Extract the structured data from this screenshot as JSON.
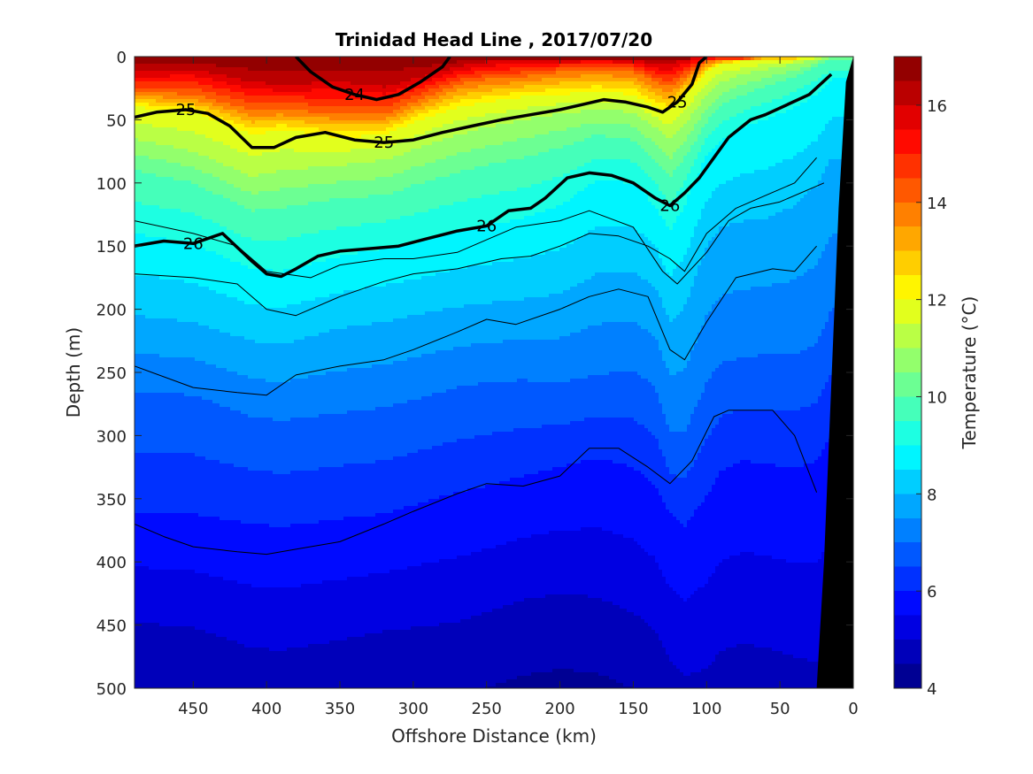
{
  "chart_data": {
    "type": "heatmap",
    "subtype": "filled-contour section with density contour overlay",
    "title": "Trinidad Head Line , 2017/07/20",
    "xlabel": "Offshore Distance (km)",
    "ylabel": "Depth (m)",
    "colorbar_label": "Temperature (°C)",
    "xlim": [
      490,
      0
    ],
    "x_reversed": true,
    "ylim": [
      0,
      500
    ],
    "y_reversed": true,
    "x_ticks": [
      "450",
      "400",
      "350",
      "300",
      "250",
      "200",
      "150",
      "100",
      "50",
      "0"
    ],
    "x_tick_values": [
      450,
      400,
      350,
      300,
      250,
      200,
      150,
      100,
      50,
      0
    ],
    "y_ticks": [
      "0",
      "50",
      "100",
      "150",
      "200",
      "250",
      "300",
      "350",
      "400",
      "450",
      "500"
    ],
    "y_tick_values": [
      0,
      50,
      100,
      150,
      200,
      250,
      300,
      350,
      400,
      450,
      500
    ],
    "colorbar_ticks": [
      "4",
      "6",
      "8",
      "10",
      "12",
      "14",
      "16"
    ],
    "colorbar_tick_values": [
      4,
      6,
      8,
      10,
      12,
      14,
      16
    ],
    "colorbar_range": [
      4,
      17
    ],
    "colormap": "jet",
    "colormap_levels": 26,
    "temperature_isotherm_depths_m": {
      "x_km": [
        490,
        450,
        410,
        390,
        350,
        320,
        300,
        270,
        250,
        225,
        200,
        175,
        150,
        135,
        125,
        115,
        100,
        90,
        75,
        60,
        40,
        25,
        15
      ],
      "isotherms": [
        {
          "temp": 16,
          "depth": [
            12,
            10,
            20,
            22,
            20,
            24,
            18,
            8,
            4,
            2,
            2,
            2,
            2,
            6,
            6,
            2,
            0,
            0,
            0,
            0,
            0,
            0,
            0
          ]
        },
        {
          "temp": 14,
          "depth": [
            28,
            30,
            42,
            42,
            45,
            46,
            36,
            22,
            18,
            16,
            12,
            10,
            12,
            20,
            24,
            16,
            4,
            2,
            2,
            0,
            0,
            0,
            0
          ]
        },
        {
          "temp": 12,
          "depth": [
            40,
            44,
            62,
            58,
            64,
            62,
            52,
            40,
            36,
            32,
            30,
            28,
            30,
            40,
            44,
            32,
            12,
            6,
            4,
            2,
            2,
            0,
            0
          ]
        },
        {
          "temp": 11,
          "depth": [
            65,
            75,
            95,
            90,
            86,
            82,
            74,
            62,
            56,
            50,
            45,
            42,
            44,
            56,
            66,
            54,
            30,
            20,
            14,
            10,
            6,
            2,
            0
          ]
        },
        {
          "temp": 10,
          "depth": [
            90,
            100,
            122,
            120,
            112,
            110,
            102,
            92,
            86,
            80,
            72,
            62,
            66,
            82,
            96,
            80,
            52,
            38,
            30,
            24,
            16,
            8,
            2
          ]
        },
        {
          "temp": 9,
          "depth": [
            140,
            148,
            168,
            170,
            158,
            152,
            148,
            138,
            134,
            128,
            118,
            98,
            100,
            118,
            138,
            118,
            78,
            66,
            56,
            50,
            40,
            30,
            18
          ]
        },
        {
          "temp": 8,
          "depth": [
            205,
            210,
            225,
            228,
            215,
            210,
            205,
            198,
            195,
            192,
            188,
            172,
            170,
            182,
            210,
            198,
            150,
            135,
            130,
            128,
            118,
            102,
            80
          ]
        },
        {
          "temp": 7,
          "depth": [
            265,
            268,
            285,
            288,
            282,
            278,
            272,
            262,
            258,
            256,
            258,
            252,
            248,
            262,
            296,
            298,
            258,
            242,
            238,
            236,
            236,
            228,
            200
          ]
        },
        {
          "temp": 6,
          "depth": [
            360,
            362,
            370,
            372,
            366,
            362,
            355,
            345,
            340,
            332,
            325,
            318,
            325,
            340,
            362,
            372,
            348,
            328,
            320,
            322,
            326,
            320,
            300
          ]
        },
        {
          "temp": 5,
          "depth": [
            448,
            452,
            468,
            470,
            462,
            455,
            452,
            448,
            440,
            430,
            425,
            428,
            440,
            455,
            478,
            490,
            485,
            470,
            465,
            468,
            475,
            480,
            470
          ]
        }
      ]
    },
    "density_contours": [
      {
        "label": "24",
        "x_km": [
          380,
          370,
          355,
          340,
          325,
          310,
          295,
          280,
          275
        ],
        "depth": [
          0,
          12,
          24,
          30,
          34,
          30,
          20,
          8,
          0
        ]
      },
      {
        "label": "25",
        "x_km": [
          490,
          475,
          455,
          440,
          425,
          410,
          395,
          380,
          360,
          340,
          320,
          300,
          280,
          260,
          240,
          220,
          200,
          185,
          170,
          155,
          140,
          130,
          120,
          110,
          105,
          100
        ],
        "depth": [
          48,
          44,
          42,
          45,
          55,
          72,
          72,
          64,
          60,
          66,
          68,
          66,
          60,
          55,
          50,
          46,
          42,
          38,
          34,
          36,
          40,
          44,
          36,
          22,
          5,
          0
        ]
      },
      {
        "label": "26",
        "x_km": [
          490,
          470,
          450,
          430,
          410,
          400,
          390,
          380,
          365,
          350,
          330,
          310,
          290,
          270,
          250,
          235,
          220,
          210,
          195,
          180,
          165,
          150,
          135,
          125,
          115,
          105,
          95,
          85,
          70,
          60,
          45,
          30,
          15
        ],
        "depth": [
          150,
          146,
          148,
          140,
          162,
          172,
          174,
          168,
          158,
          154,
          152,
          150,
          144,
          138,
          134,
          122,
          120,
          112,
          96,
          92,
          94,
          100,
          112,
          118,
          108,
          96,
          80,
          64,
          50,
          46,
          38,
          30,
          14
        ]
      },
      {
        "label": "",
        "x_km": [
          490,
          450,
          420,
          400,
          370,
          350,
          320,
          300,
          270,
          250,
          230,
          200,
          180,
          150,
          130,
          120,
          100,
          85,
          70,
          50,
          20
        ],
        "depth": [
          130,
          140,
          150,
          170,
          175,
          165,
          160,
          160,
          155,
          145,
          135,
          130,
          122,
          135,
          170,
          180,
          155,
          130,
          120,
          115,
          100
        ]
      },
      {
        "label": "",
        "x_km": [
          490,
          450,
          420,
          400,
          380,
          350,
          320,
          300,
          270,
          240,
          220,
          200,
          180,
          160,
          140,
          125,
          115,
          100,
          80,
          60,
          40,
          25
        ],
        "depth": [
          172,
          175,
          180,
          200,
          205,
          190,
          178,
          172,
          168,
          160,
          158,
          150,
          140,
          142,
          150,
          160,
          170,
          140,
          120,
          110,
          100,
          80
        ]
      },
      {
        "label": "",
        "x_km": [
          490,
          450,
          420,
          400,
          380,
          350,
          320,
          300,
          270,
          250,
          230,
          200,
          180,
          160,
          140,
          125,
          115,
          100,
          80,
          55,
          40,
          25
        ],
        "depth": [
          245,
          262,
          266,
          268,
          252,
          245,
          240,
          232,
          218,
          208,
          212,
          200,
          190,
          184,
          190,
          232,
          240,
          210,
          175,
          168,
          170,
          150
        ]
      },
      {
        "label": "",
        "x_km": [
          490,
          470,
          450,
          420,
          400,
          380,
          350,
          320,
          300,
          270,
          250,
          225,
          200,
          180,
          160,
          140,
          125,
          110,
          95,
          85,
          70,
          55,
          40,
          25
        ],
        "depth": [
          370,
          380,
          388,
          392,
          394,
          390,
          384,
          370,
          360,
          346,
          338,
          340,
          332,
          310,
          310,
          325,
          338,
          320,
          285,
          280,
          280,
          280,
          300,
          345
        ]
      }
    ],
    "topography": {
      "x_km": [
        25,
        20,
        15,
        10,
        5,
        0
      ],
      "depth": [
        500,
        400,
        260,
        120,
        20,
        0
      ],
      "color": "#000000"
    },
    "colors": {
      "axis": "#262626",
      "contour_line": "#000000",
      "bathymetry": "#000000"
    }
  }
}
